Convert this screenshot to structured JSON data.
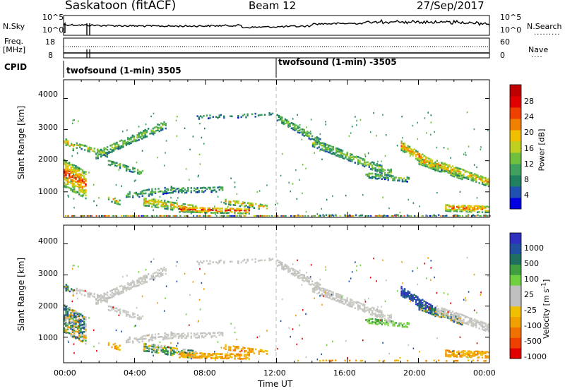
{
  "header": {
    "station": "Saskatoon (fitACF)",
    "beam": "Beam 12",
    "date": "27/Sep/2017"
  },
  "noise_panel": {
    "left_label": "N.Sky",
    "right_label": "N.Search",
    "left_ticks": [
      "10^5",
      "10^0"
    ],
    "right_ticks": [
      "10^5",
      "10^0"
    ]
  },
  "freq_panel": {
    "left_label_1": "Freq.",
    "left_label_2": "[MHz]",
    "left_ticks": [
      "18",
      "8"
    ],
    "right_label": "Nave",
    "right_ticks": [
      "60",
      "0"
    ]
  },
  "cpid": {
    "label": "CPID",
    "segments": [
      {
        "start_hour": 0,
        "text": "twofsound (1-min) 3505"
      },
      {
        "start_hour": 12,
        "text": "twofsound (1-min) -3505"
      }
    ]
  },
  "chart_data": [
    {
      "type": "heatmap",
      "name": "power-panel",
      "ylabel": "Slant Range [km]",
      "ylim": [
        180,
        4600
      ],
      "yticks": [
        1000,
        2000,
        3000,
        4000
      ],
      "xlim": [
        0,
        24
      ],
      "colorbar": {
        "label": "Power [dB]",
        "ticks": [
          "28",
          "24",
          "20",
          "16",
          "12",
          "8",
          "4"
        ],
        "colors": [
          "#0000e0",
          "#2050b0",
          "#208060",
          "#40a060",
          "#70c040",
          "#c0d020",
          "#f0c000",
          "#f08000",
          "#f04000",
          "#e00000",
          "#c00000"
        ]
      }
    },
    {
      "type": "heatmap",
      "name": "velocity-panel",
      "ylabel": "Slant Range [km]",
      "ylim": [
        180,
        4600
      ],
      "yticks": [
        1000,
        2000,
        3000,
        4000
      ],
      "xlim": [
        0,
        24
      ],
      "xticks": [
        "00:00",
        "04:00",
        "08:00",
        "12:00",
        "16:00",
        "20:00",
        "00:00"
      ],
      "xlabel": "Time UT",
      "colorbar": {
        "label": "Velocity [m s^-1]",
        "ticks": [
          "1000",
          "500",
          "100",
          "25",
          "-25",
          "-100",
          "-500",
          "-1000"
        ],
        "colors": [
          "#3030c0",
          "#2050a0",
          "#207060",
          "#40a040",
          "#70d040",
          "#c0c0c0",
          "#c0c0c0",
          "#f0c000",
          "#f0a000",
          "#f07000",
          "#f04000",
          "#e00000"
        ]
      }
    }
  ]
}
